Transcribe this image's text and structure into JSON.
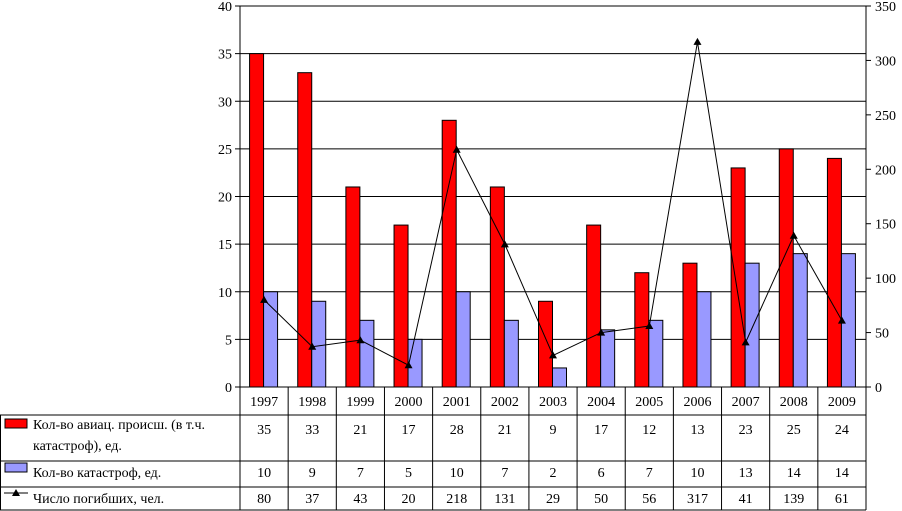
{
  "chart_data": {
    "type": "bar",
    "title": "",
    "categories": [
      "1997",
      "1998",
      "1999",
      "2000",
      "2001",
      "2002",
      "2003",
      "2004",
      "2005",
      "2006",
      "2007",
      "2008",
      "2009"
    ],
    "left_axis": {
      "ylim": [
        0,
        40
      ],
      "ticks": [
        "0",
        "5",
        "10",
        "15",
        "20",
        "25",
        "30",
        "35",
        "40"
      ]
    },
    "right_axis": {
      "ylim": [
        0,
        350
      ],
      "ticks": [
        "0",
        "50",
        "100",
        "150",
        "200",
        "250",
        "300",
        "350"
      ]
    },
    "grid": true,
    "legend": "data-table-below",
    "series": [
      {
        "name": "Кол-во авиац. происш. (в т.ч. катастроф), ед.",
        "name_lines": [
          "Кол-во авиац. происш. (в т.ч.",
          "катастроф), ед."
        ],
        "kind": "bar",
        "axis": "left",
        "color": "#ff0000",
        "values": [
          35,
          33,
          21,
          17,
          28,
          21,
          9,
          17,
          12,
          13,
          23,
          25,
          24
        ]
      },
      {
        "name": "Кол-во катастроф, ед.",
        "name_lines": [
          "Кол-во катастроф, ед."
        ],
        "kind": "bar",
        "axis": "left",
        "color": "#9999ff",
        "values": [
          10,
          9,
          7,
          5,
          10,
          7,
          2,
          6,
          7,
          10,
          13,
          14,
          14
        ]
      },
      {
        "name": "Число погибших, чел.",
        "name_lines": [
          "Число погибших, чел."
        ],
        "kind": "line",
        "marker": "triangle",
        "axis": "right",
        "color": "#000000",
        "values": [
          80,
          37,
          43,
          20,
          218,
          131,
          29,
          50,
          56,
          317,
          41,
          139,
          61
        ]
      }
    ]
  }
}
